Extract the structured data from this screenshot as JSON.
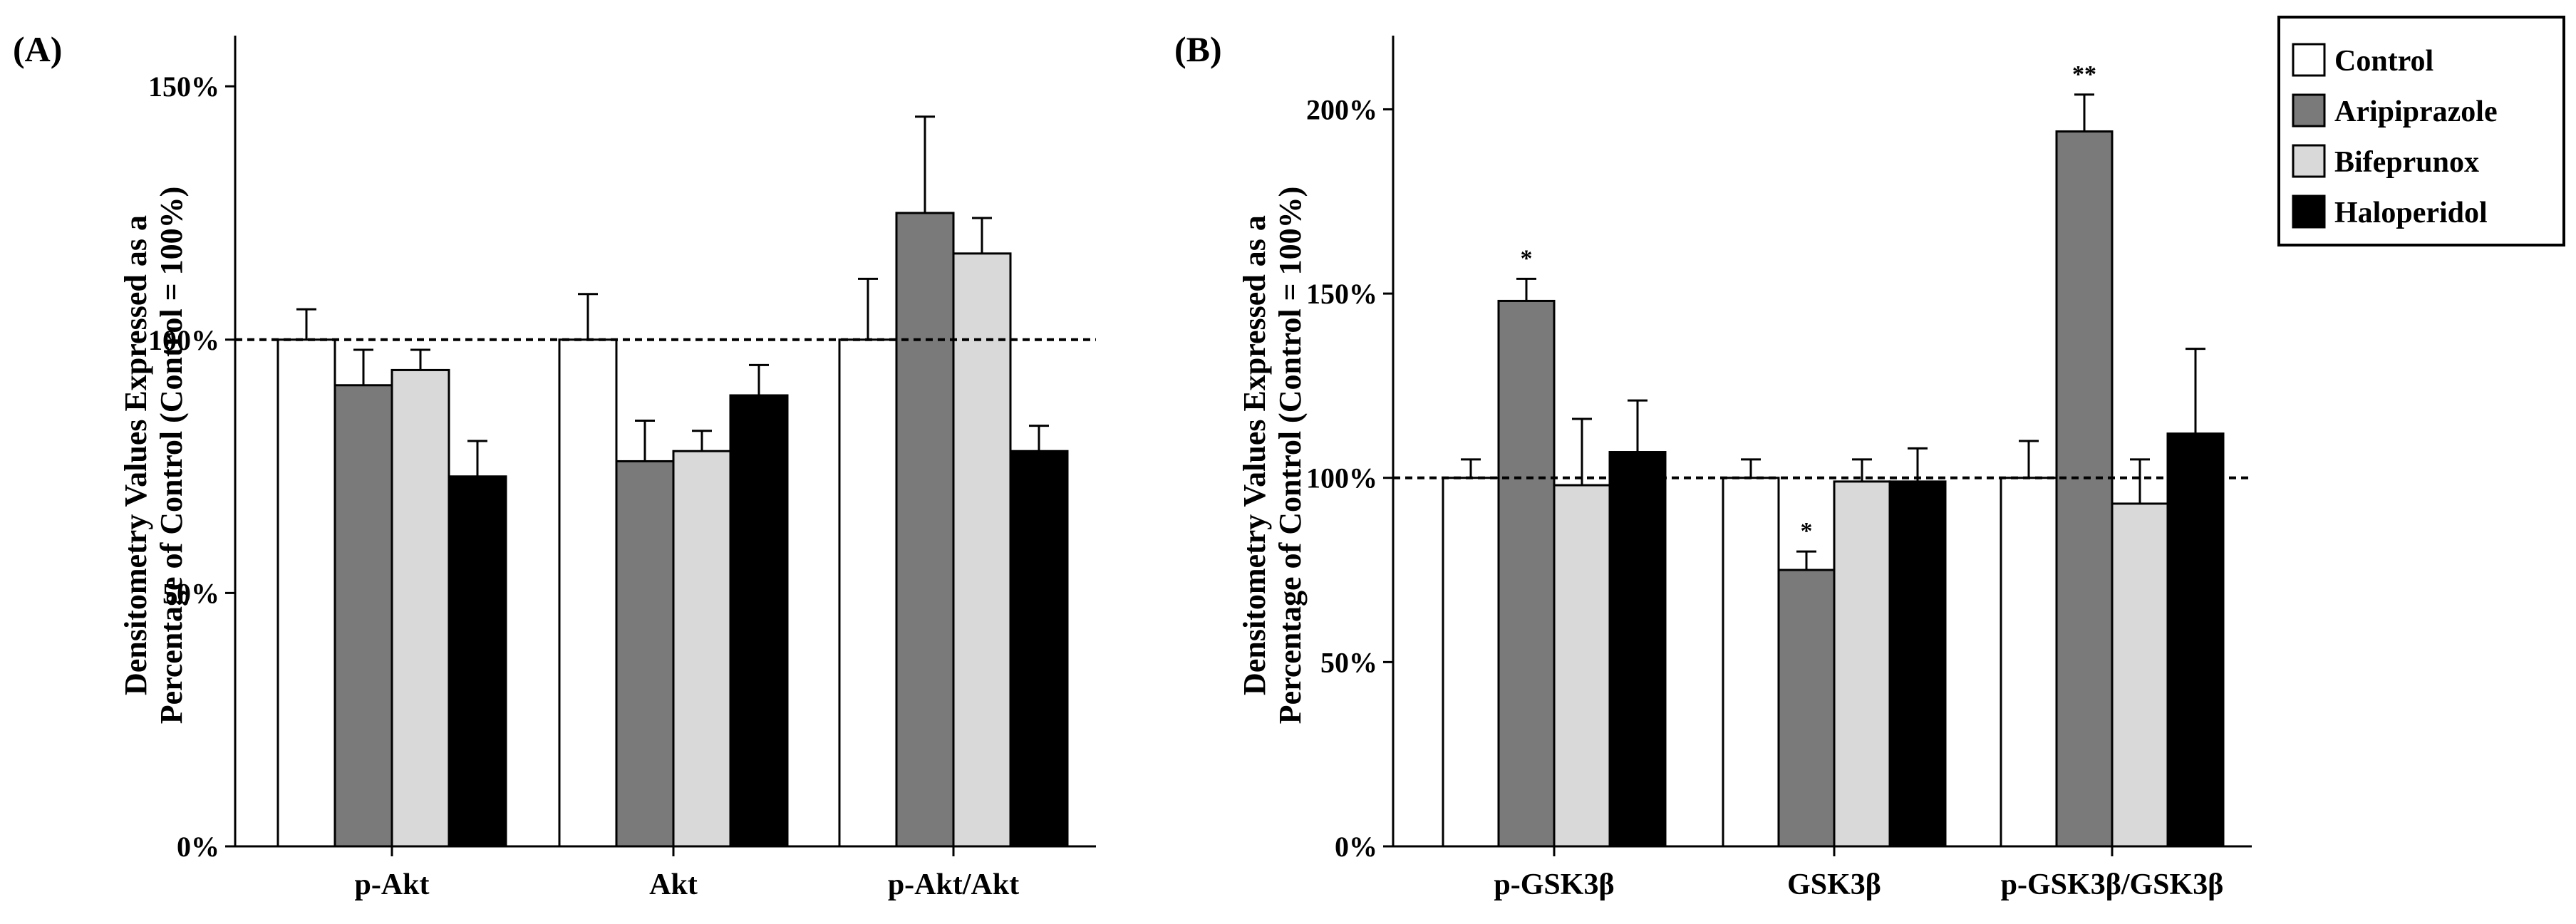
{
  "chart_data": [
    {
      "type": "bar",
      "panel_label": "(A)",
      "categories": [
        "p-Akt",
        "Akt",
        "p-Akt/Akt"
      ],
      "ylabel_lines": [
        "Densitometry Values Expressed as a",
        "Percentage of Control (Control = 100%)"
      ],
      "ylim": [
        0,
        160
      ],
      "yticks": [
        0,
        50,
        100,
        150
      ],
      "ytick_labels": [
        "0%",
        "50%",
        "100%",
        "150%"
      ],
      "reference_line": 100,
      "series": [
        {
          "name": "Control",
          "values": [
            100,
            100,
            100
          ],
          "errors": [
            6,
            9,
            12
          ],
          "significance": [
            "",
            "",
            ""
          ]
        },
        {
          "name": "Aripiprazole",
          "values": [
            91,
            76,
            125
          ],
          "errors": [
            7,
            8,
            19
          ],
          "significance": [
            "",
            "",
            ""
          ]
        },
        {
          "name": "Bifeprunox",
          "values": [
            94,
            78,
            117
          ],
          "errors": [
            4,
            4,
            7
          ],
          "significance": [
            "",
            "",
            ""
          ]
        },
        {
          "name": "Haloperidol",
          "values": [
            73,
            89,
            78
          ],
          "errors": [
            7,
            6,
            5
          ],
          "significance": [
            "",
            "",
            ""
          ]
        }
      ]
    },
    {
      "type": "bar",
      "panel_label": "(B)",
      "categories": [
        "p-GSK3β",
        "GSK3β",
        "p-GSK3β/GSK3β"
      ],
      "ylabel_lines": [
        "Densitometry Values Expressed as a",
        "Percentage of Control (Control = 100%)"
      ],
      "ylim": [
        0,
        220
      ],
      "yticks": [
        0,
        50,
        100,
        150,
        200
      ],
      "ytick_labels": [
        "0%",
        "50%",
        "100%",
        "150%",
        "200%"
      ],
      "reference_line": 100,
      "series": [
        {
          "name": "Control",
          "values": [
            100,
            100,
            100
          ],
          "errors": [
            5,
            5,
            10
          ],
          "significance": [
            "",
            "",
            ""
          ]
        },
        {
          "name": "Aripiprazole",
          "values": [
            148,
            75,
            194
          ],
          "errors": [
            6,
            5,
            10
          ],
          "significance": [
            "*",
            "*",
            "**"
          ]
        },
        {
          "name": "Bifeprunox",
          "values": [
            98,
            99,
            93
          ],
          "errors": [
            18,
            6,
            12
          ],
          "significance": [
            "",
            "",
            ""
          ]
        },
        {
          "name": "Haloperidol",
          "values": [
            107,
            99,
            112
          ],
          "errors": [
            14,
            9,
            23
          ],
          "significance": [
            "",
            "",
            ""
          ]
        }
      ]
    }
  ],
  "legend": {
    "items": [
      {
        "label": "Control",
        "color": "#ffffff"
      },
      {
        "label": "Aripiprazole",
        "color": "#7a7a7a"
      },
      {
        "label": "Bifeprunox",
        "color": "#d9d9d9"
      },
      {
        "label": "Haloperidol",
        "color": "#000000"
      }
    ]
  }
}
